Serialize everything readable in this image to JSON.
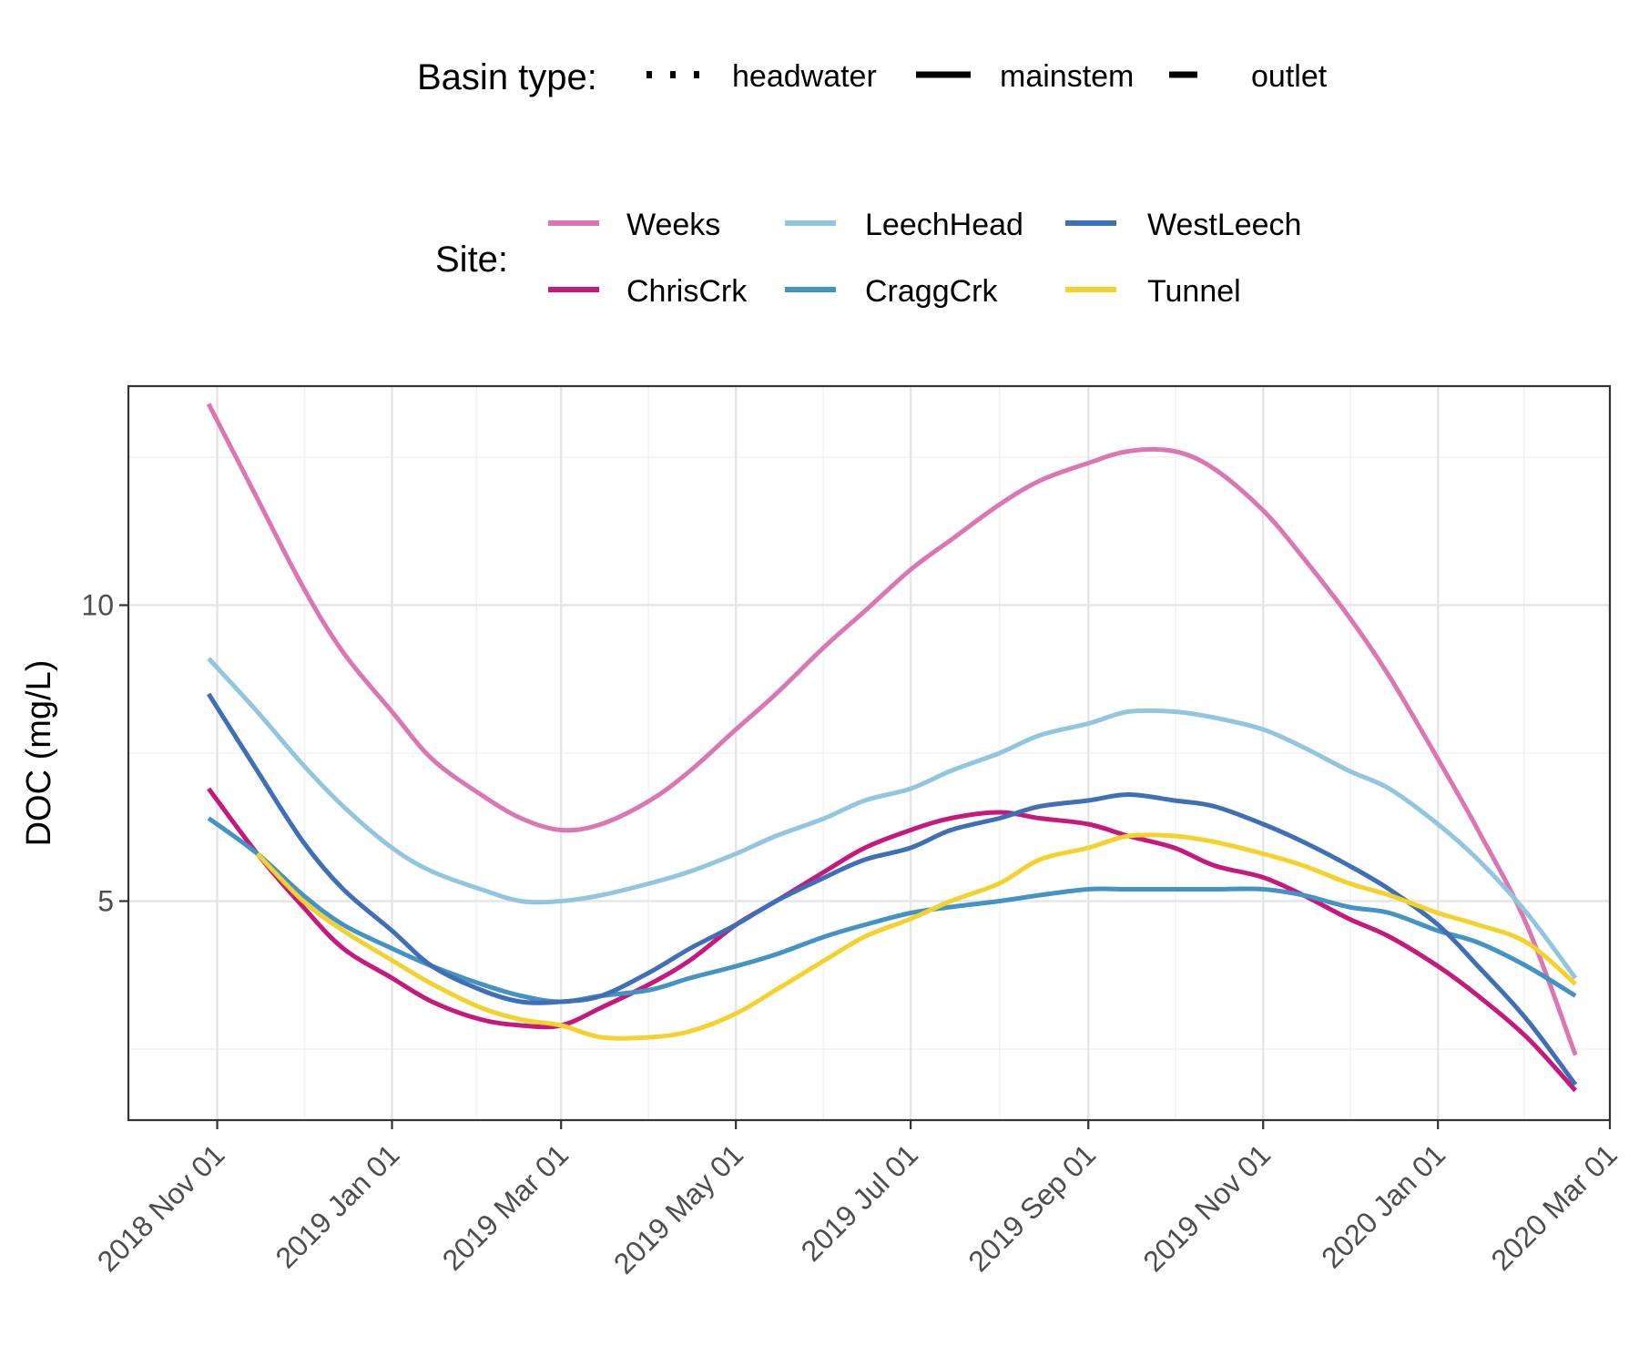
{
  "chart_data": {
    "type": "line",
    "ylabel": "DOC (mg/L)",
    "xlabel": "",
    "x_ticks": [
      "2018-11-01",
      "2019-01-01",
      "2019-03-01",
      "2019-05-01",
      "2019-07-01",
      "2019-09-01",
      "2019-11-01",
      "2020-01-01",
      "2020-03-01"
    ],
    "x_tick_labels": [
      "2018 Nov 01",
      "2019 Jan 01",
      "2019 Mar 01",
      "2019 May 01",
      "2019 Jul 01",
      "2019 Sep 01",
      "2019 Nov 01",
      "2020 Jan 01",
      "2020 Mar 01"
    ],
    "xlim": [
      "2018-10-01",
      "2020-03-01"
    ],
    "y_ticks": [
      5,
      10
    ],
    "y_tick_labels": [
      "5",
      "10"
    ],
    "ylim": [
      1.3,
      13.7
    ],
    "grid": true,
    "legend_position": "top",
    "legend": {
      "basin_title": "Basin type:",
      "basin_types": [
        {
          "key": "headwater",
          "label": "headwater",
          "dash": "dotted"
        },
        {
          "key": "mainstem",
          "label": "mainstem",
          "dash": "solid"
        },
        {
          "key": "outlet",
          "label": "outlet",
          "dash": "dashed"
        }
      ],
      "site_title": "Site:",
      "site_order": [
        "Weeks",
        "ChrisCrk",
        "LeechHead",
        "CraggCrk",
        "WestLeech",
        "Tunnel"
      ]
    },
    "series": [
      {
        "name": "Weeks",
        "basin": "headwater",
        "color": "#DA77B3",
        "x": [
          "2018-10-29",
          "2018-11-15",
          "2018-12-01",
          "2018-12-15",
          "2019-01-01",
          "2019-01-15",
          "2019-02-01",
          "2019-02-15",
          "2019-03-01",
          "2019-03-15",
          "2019-04-01",
          "2019-04-15",
          "2019-05-01",
          "2019-05-15",
          "2019-06-01",
          "2019-06-15",
          "2019-07-01",
          "2019-07-15",
          "2019-08-01",
          "2019-08-15",
          "2019-09-01",
          "2019-09-15",
          "2019-10-01",
          "2019-10-15",
          "2019-11-01",
          "2019-11-15",
          "2019-12-01",
          "2019-12-15",
          "2020-01-01",
          "2020-01-15",
          "2020-02-01",
          "2020-02-18"
        ],
        "y": [
          13.4,
          11.8,
          10.3,
          9.2,
          8.2,
          7.4,
          6.8,
          6.4,
          6.2,
          6.3,
          6.7,
          7.2,
          7.9,
          8.5,
          9.3,
          9.9,
          10.6,
          11.1,
          11.7,
          12.1,
          12.4,
          12.6,
          12.6,
          12.3,
          11.6,
          10.8,
          9.8,
          8.8,
          7.4,
          6.2,
          4.6,
          2.4
        ]
      },
      {
        "name": "ChrisCrk",
        "basin": "headwater",
        "color": "#C5197E",
        "x": [
          "2018-10-29",
          "2018-11-15",
          "2018-12-01",
          "2018-12-15",
          "2019-01-01",
          "2019-01-15",
          "2019-02-01",
          "2019-02-15",
          "2019-03-01",
          "2019-03-15",
          "2019-04-01",
          "2019-04-15",
          "2019-05-01",
          "2019-05-15",
          "2019-06-01",
          "2019-06-15",
          "2019-07-01",
          "2019-07-15",
          "2019-08-01",
          "2019-08-15",
          "2019-09-01",
          "2019-09-15",
          "2019-10-01",
          "2019-10-15",
          "2019-11-01",
          "2019-11-15",
          "2019-12-01",
          "2019-12-15",
          "2020-01-01",
          "2020-01-15",
          "2020-02-01",
          "2020-02-18"
        ],
        "y": [
          6.9,
          5.8,
          4.9,
          4.2,
          3.7,
          3.3,
          3.0,
          2.9,
          2.9,
          3.2,
          3.6,
          4.0,
          4.6,
          5.0,
          5.5,
          5.9,
          6.2,
          6.4,
          6.5,
          6.4,
          6.3,
          6.1,
          5.9,
          5.6,
          5.4,
          5.1,
          4.7,
          4.4,
          3.9,
          3.4,
          2.7,
          1.8
        ]
      },
      {
        "name": "LeechHead",
        "basin": "mainstem",
        "color": "#92C5DE",
        "x": [
          "2018-10-29",
          "2018-11-15",
          "2018-12-01",
          "2018-12-15",
          "2019-01-01",
          "2019-01-15",
          "2019-02-01",
          "2019-02-15",
          "2019-03-01",
          "2019-03-15",
          "2019-04-01",
          "2019-04-15",
          "2019-05-01",
          "2019-05-15",
          "2019-06-01",
          "2019-06-15",
          "2019-07-01",
          "2019-07-15",
          "2019-08-01",
          "2019-08-15",
          "2019-09-01",
          "2019-09-15",
          "2019-10-01",
          "2019-10-15",
          "2019-11-01",
          "2019-11-15",
          "2019-12-01",
          "2019-12-15",
          "2020-01-01",
          "2020-01-15",
          "2020-02-01",
          "2020-02-18"
        ],
        "y": [
          9.1,
          8.2,
          7.3,
          6.6,
          5.9,
          5.5,
          5.2,
          5.0,
          5.0,
          5.1,
          5.3,
          5.5,
          5.8,
          6.1,
          6.4,
          6.7,
          6.9,
          7.2,
          7.5,
          7.8,
          8.0,
          8.2,
          8.2,
          8.1,
          7.9,
          7.6,
          7.2,
          6.9,
          6.3,
          5.7,
          4.8,
          3.7
        ]
      },
      {
        "name": "CraggCrk",
        "basin": "mainstem",
        "color": "#4393C3",
        "x": [
          "2018-10-29",
          "2018-11-15",
          "2018-12-01",
          "2018-12-15",
          "2019-01-01",
          "2019-01-15",
          "2019-02-01",
          "2019-02-15",
          "2019-03-01",
          "2019-03-15",
          "2019-04-01",
          "2019-04-15",
          "2019-05-01",
          "2019-05-15",
          "2019-06-01",
          "2019-06-15",
          "2019-07-01",
          "2019-07-15",
          "2019-08-01",
          "2019-08-15",
          "2019-09-01",
          "2019-09-15",
          "2019-10-01",
          "2019-10-15",
          "2019-11-01",
          "2019-11-15",
          "2019-12-01",
          "2019-12-15",
          "2020-01-01",
          "2020-01-15",
          "2020-02-01",
          "2020-02-18"
        ],
        "y": [
          6.4,
          5.8,
          5.1,
          4.6,
          4.2,
          3.9,
          3.6,
          3.4,
          3.3,
          3.4,
          3.5,
          3.7,
          3.9,
          4.1,
          4.4,
          4.6,
          4.8,
          4.9,
          5.0,
          5.1,
          5.2,
          5.2,
          5.2,
          5.2,
          5.2,
          5.1,
          4.9,
          4.8,
          4.5,
          4.3,
          3.9,
          3.4
        ]
      },
      {
        "name": "WestLeech",
        "basin": "mainstem",
        "color": "#3F6FB5",
        "x": [
          "2018-10-29",
          "2018-11-15",
          "2018-12-01",
          "2018-12-15",
          "2019-01-01",
          "2019-01-15",
          "2019-02-01",
          "2019-02-15",
          "2019-03-01",
          "2019-03-15",
          "2019-04-01",
          "2019-04-15",
          "2019-05-01",
          "2019-05-15",
          "2019-06-01",
          "2019-06-15",
          "2019-07-01",
          "2019-07-15",
          "2019-08-01",
          "2019-08-15",
          "2019-09-01",
          "2019-09-15",
          "2019-10-01",
          "2019-10-15",
          "2019-11-01",
          "2019-11-15",
          "2019-12-01",
          "2019-12-15",
          "2020-01-01",
          "2020-01-15",
          "2020-02-01",
          "2020-02-18"
        ],
        "y": [
          8.5,
          7.2,
          6.0,
          5.2,
          4.5,
          3.9,
          3.5,
          3.3,
          3.3,
          3.4,
          3.8,
          4.2,
          4.6,
          5.0,
          5.4,
          5.7,
          5.9,
          6.2,
          6.4,
          6.6,
          6.7,
          6.8,
          6.7,
          6.6,
          6.3,
          6.0,
          5.6,
          5.2,
          4.6,
          3.9,
          3.0,
          1.9
        ]
      },
      {
        "name": "Tunnel",
        "basin": "outlet",
        "color": "#F4D22E",
        "x": [
          "2018-11-15",
          "2018-12-01",
          "2018-12-15",
          "2019-01-01",
          "2019-01-15",
          "2019-02-01",
          "2019-02-15",
          "2019-03-01",
          "2019-03-15",
          "2019-04-01",
          "2019-04-15",
          "2019-05-01",
          "2019-05-15",
          "2019-06-01",
          "2019-06-15",
          "2019-07-01",
          "2019-07-15",
          "2019-08-01",
          "2019-08-15",
          "2019-09-01",
          "2019-09-15",
          "2019-10-01",
          "2019-10-15",
          "2019-11-01",
          "2019-11-15",
          "2019-12-01",
          "2019-12-15",
          "2020-01-01",
          "2020-01-15",
          "2020-02-01",
          "2020-02-18"
        ],
        "y": [
          5.8,
          5.0,
          4.5,
          4.0,
          3.6,
          3.2,
          3.0,
          2.9,
          2.7,
          2.7,
          2.8,
          3.1,
          3.5,
          4.0,
          4.4,
          4.7,
          5.0,
          5.3,
          5.7,
          5.9,
          6.1,
          6.1,
          6.0,
          5.8,
          5.6,
          5.3,
          5.1,
          4.8,
          4.6,
          4.3,
          3.6
        ]
      }
    ]
  }
}
